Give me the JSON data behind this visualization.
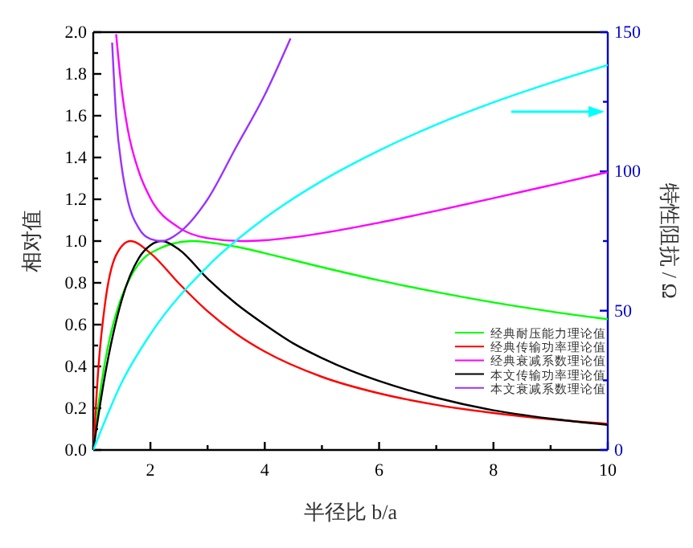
{
  "chart_data": {
    "type": "line",
    "xlabel": "半径比 b/a",
    "ylabel": "相对值",
    "y2label": "特性阻抗 / Ω",
    "xlim": [
      1,
      10
    ],
    "xticks": [
      {
        "value": 1,
        "label": null
      },
      2,
      {
        "value": 3,
        "label": null
      },
      4,
      {
        "value": 5,
        "label": null
      },
      6,
      {
        "value": 7,
        "label": null
      },
      8,
      {
        "value": 9,
        "label": null
      },
      10
    ],
    "ylim": [
      0,
      2
    ],
    "yticks": [
      "0.0",
      {
        "value": 0.1,
        "label": null
      },
      0.2,
      {
        "value": 0.3,
        "label": null
      },
      0.4,
      {
        "value": 0.5,
        "label": null
      },
      0.6,
      {
        "value": 0.7,
        "label": null
      },
      0.8,
      {
        "value": 0.9,
        "label": null
      },
      "1.0",
      {
        "value": 1.1,
        "label": null
      },
      1.2,
      {
        "value": 1.3,
        "label": null
      },
      1.4,
      {
        "value": 1.5,
        "label": null
      },
      1.6,
      {
        "value": 1.7,
        "label": null
      },
      1.8,
      {
        "value": 1.9,
        "label": null
      },
      "2.0"
    ],
    "y2lim": [
      0,
      150
    ],
    "y2ticks": [
      0,
      {
        "value": 25,
        "label": null
      },
      50,
      {
        "value": 75,
        "label": null
      },
      100,
      {
        "value": 125,
        "label": null
      },
      150
    ],
    "grid": false,
    "legend": "bottom right",
    "marker": "none",
    "line_style": "solid",
    "series": [
      {
        "name": "经典耐压能力理论值",
        "color": "#00ff00",
        "x": [
          1,
          1.1,
          1.2,
          1.3,
          1.4,
          1.5,
          1.6,
          2,
          2.718,
          3.5,
          4,
          5,
          6,
          7,
          8,
          9,
          10
        ],
        "values": [
          0,
          0.236,
          0.413,
          0.549,
          0.653,
          0.735,
          0.799,
          0.942,
          1.0,
          0.973,
          0.942,
          0.875,
          0.812,
          0.756,
          0.706,
          0.663,
          0.626
        ]
      },
      {
        "name": "经典传输功率理论值",
        "color": "#ff0000",
        "x": [
          1,
          1.1,
          1.2,
          1.4,
          1.65,
          2,
          2.5,
          3,
          3.5,
          4,
          5,
          6,
          7,
          8,
          9,
          10
        ],
        "values": [
          0,
          0.428,
          0.688,
          0.933,
          1.0,
          0.942,
          0.797,
          0.664,
          0.556,
          0.471,
          0.35,
          0.271,
          0.216,
          0.177,
          0.147,
          0.125
        ]
      },
      {
        "name": "经典衰减系数理论值",
        "color": "#ff00ff",
        "x": [
          1.4,
          1.5,
          1.6,
          1.8,
          2,
          2.5,
          3,
          3.59,
          4,
          5,
          6,
          7,
          8,
          9,
          10
        ],
        "values": [
          1.99,
          1.72,
          1.54,
          1.33,
          1.205,
          1.064,
          1.014,
          1.0,
          1.004,
          1.038,
          1.088,
          1.145,
          1.205,
          1.267,
          1.33
        ]
      },
      {
        "name": "本文传输功率理论值",
        "color": "#000000",
        "x": [
          1,
          1.2,
          1.5,
          1.8,
          2,
          2.2,
          2.5,
          3,
          3.5,
          4,
          4.5,
          5,
          5.5,
          6,
          7,
          8,
          9,
          10
        ],
        "values": [
          0,
          0.35,
          0.72,
          0.92,
          0.98,
          1.0,
          0.96,
          0.82,
          0.7,
          0.6,
          0.51,
          0.44,
          0.38,
          0.33,
          0.25,
          0.19,
          0.15,
          0.12
        ]
      },
      {
        "name": "本文衰减系数理论值",
        "color": "#9933ff",
        "x": [
          1.33,
          1.4,
          1.5,
          1.6,
          1.8,
          2,
          2.2,
          2.5,
          3,
          3.5,
          4,
          4.45
        ],
        "values": [
          1.95,
          1.6,
          1.35,
          1.2,
          1.06,
          1.01,
          1.0,
          1.04,
          1.2,
          1.45,
          1.7,
          1.97
        ]
      },
      {
        "color": "#00ffff",
        "axis": "y2",
        "x": [
          1,
          1.5,
          2,
          3,
          4,
          5,
          6,
          7,
          8,
          9,
          10
        ],
        "values": [
          0,
          24.3,
          41.6,
          65.9,
          83.2,
          96.6,
          107.5,
          116.8,
          124.8,
          131.8,
          138.2
        ]
      }
    ]
  }
}
